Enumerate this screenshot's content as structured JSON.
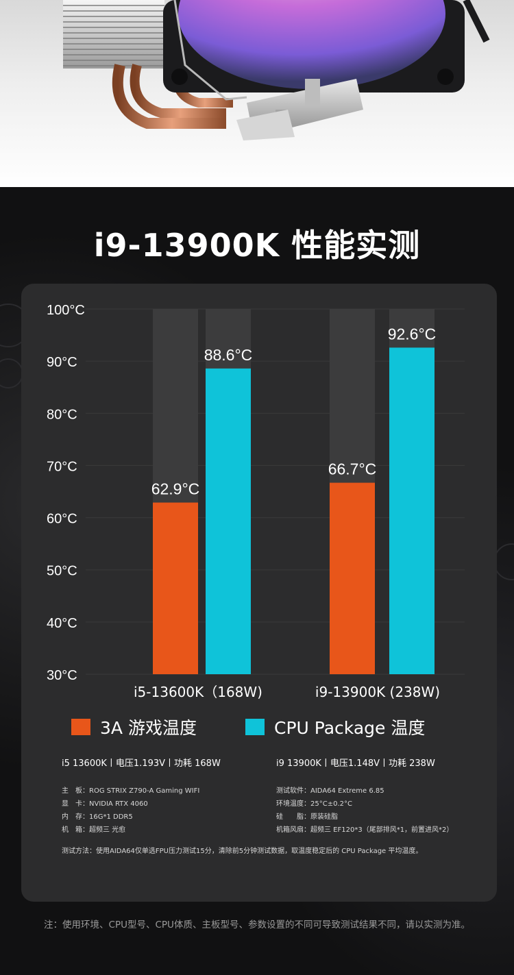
{
  "title": "i9-13900K 性能实测",
  "colors": {
    "game": "#e8561a",
    "cpu": "#0fc3d9",
    "track": "#3c3c3d",
    "panel": "#2c2c2d"
  },
  "chart_data": {
    "type": "bar",
    "ylim": [
      30,
      100
    ],
    "yticks": [
      30,
      40,
      50,
      60,
      70,
      80,
      90,
      100
    ],
    "ytick_labels": [
      "30°C",
      "40°C",
      "50°C",
      "60°C",
      "70°C",
      "80°C",
      "90°C",
      "100°C"
    ],
    "categories": [
      "i5-13600K（168W)",
      "i9-13900K (238W)"
    ],
    "series": [
      {
        "name": "3A 游戏温度",
        "values": [
          62.9,
          66.7
        ],
        "labels": [
          "62.9°C",
          "66.7°C"
        ],
        "color": "#e8561a"
      },
      {
        "name": "CPU Package 温度",
        "values": [
          88.6,
          92.6
        ],
        "labels": [
          "88.6°C",
          "92.6°C"
        ],
        "color": "#0fc3d9"
      }
    ],
    "grid": true,
    "legend": "bottom"
  },
  "legend": {
    "game": "3A 游戏温度",
    "cpu": "CPU Package 温度"
  },
  "specs": {
    "left_header": "i5 13600K丨电压1.193V丨功耗 168W",
    "right_header": "i9 13900K丨电压1.148V丨功耗 238W",
    "left_lines": [
      "主　板：ROG STRIX Z790-A Gaming WIFI",
      "显　卡：NVIDIA RTX 4060",
      "内　存：16G*1 DDR5",
      "机　箱：超频三 光愈"
    ],
    "right_lines": [
      "测试软件：AIDA64 Extreme 6.85",
      "环境温度：25°C±0.2°C",
      "硅　　脂：原装硅脂",
      "机箱风扇：超频三 EF120*3（尾部排风*1，前置进风*2）"
    ],
    "method": "测试方法：使用AIDA64仅单选FPU压力测试15分，清除前5分钟测试数据，取温度稳定后的 CPU Package 平均温度。"
  },
  "note": "注：使用环境、CPU型号、CPU体质、主板型号、参数设置的不同可导致测试结果不同，请以实测为准。"
}
